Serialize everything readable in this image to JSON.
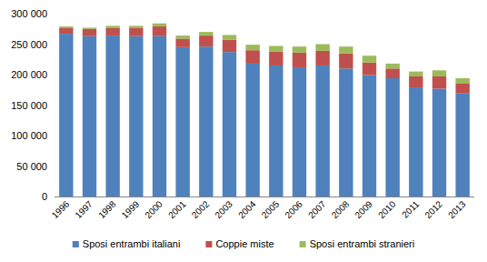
{
  "chart_data": {
    "type": "bar",
    "stacked": true,
    "grid": false,
    "legend": "bottom",
    "categories": [
      "1996",
      "1997",
      "1998",
      "1999",
      "2000",
      "2001",
      "2002",
      "2003",
      "2004",
      "2005",
      "2006",
      "2007",
      "2008",
      "2009",
      "2010",
      "2011",
      "2012",
      "2013"
    ],
    "series": [
      {
        "name": "Sposi entrambi italiani",
        "color": "#4f81bd",
        "values": [
          267000,
          263000,
          264000,
          263000,
          263000,
          245000,
          246000,
          237000,
          218000,
          215000,
          212000,
          215000,
          210000,
          199000,
          194000,
          179000,
          177000,
          169000
        ]
      },
      {
        "name": "Coppie miste",
        "color": "#c0504d",
        "values": [
          10000,
          12000,
          13000,
          14000,
          16000,
          14000,
          18000,
          20000,
          22000,
          23000,
          24000,
          24000,
          25000,
          21000,
          16000,
          18000,
          20000,
          17000
        ]
      },
      {
        "name": "Sposi entrambi stranieri",
        "color": "#9bbb59",
        "values": [
          2000,
          2000,
          3000,
          3000,
          5000,
          5000,
          6000,
          8000,
          9000,
          9000,
          10000,
          11000,
          11000,
          11000,
          8000,
          8000,
          10000,
          8000
        ]
      }
    ],
    "ylim": [
      0,
      300000
    ],
    "yticks": [
      0,
      {
        "value": 50000,
        "label": "50 000"
      },
      {
        "value": 100000,
        "label": "100 000"
      },
      {
        "value": 150000,
        "label": "150 000"
      },
      {
        "value": 200000,
        "label": "200 000"
      },
      {
        "value": 250000,
        "label": "250 000"
      },
      {
        "value": 300000,
        "label": "300 000"
      }
    ]
  }
}
